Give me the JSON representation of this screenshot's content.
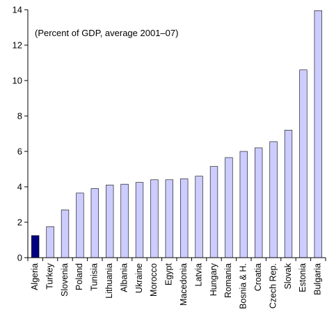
{
  "chart_data": {
    "type": "bar",
    "title": "",
    "annotation": "(Percent of GDP, average 2001–07)",
    "xlabel": "",
    "ylabel": "",
    "ylim": [
      0,
      14
    ],
    "yticks": [
      0,
      2,
      4,
      6,
      8,
      10,
      12,
      14
    ],
    "grid": false,
    "categories": [
      "Algeria",
      "Turkey",
      "Slovenia",
      "Poland",
      "Tunisia",
      "Lithuania",
      "Albania",
      "Ukraine",
      "Morocco",
      "Egypt",
      "Macedonia",
      "Latvia",
      "Hungary",
      "Romania",
      "Bosnia & H.",
      "Croatia",
      "Czech Rep.",
      "Slovak",
      "Estonia",
      "Bulgaria"
    ],
    "values": [
      1.25,
      1.75,
      2.7,
      3.65,
      3.9,
      4.1,
      4.15,
      4.25,
      4.4,
      4.4,
      4.45,
      4.6,
      5.15,
      5.65,
      6.0,
      6.2,
      6.55,
      7.2,
      10.6,
      13.95
    ],
    "highlight_category": "Algeria",
    "colors": {
      "highlight_fill": "#000080",
      "bar_fill": "#ccccff",
      "bar_stroke": "#000000",
      "axis": "#000000"
    }
  }
}
